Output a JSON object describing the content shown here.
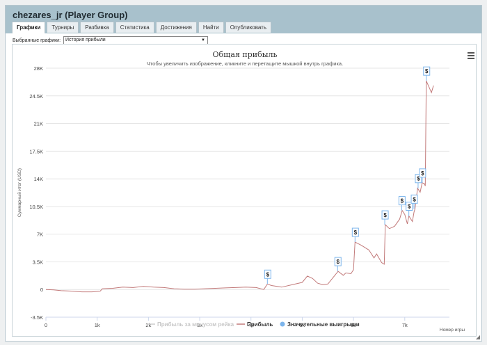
{
  "window": {
    "title": "chezares_jr (Player Group)"
  },
  "tabs": [
    {
      "label": "Графики",
      "active": true
    },
    {
      "label": "Турниры",
      "active": false
    },
    {
      "label": "Разбивка",
      "active": false
    },
    {
      "label": "Статистика",
      "active": false
    },
    {
      "label": "Достижения",
      "active": false
    },
    {
      "label": "Найти",
      "active": false
    },
    {
      "label": "Опубликовать",
      "active": false
    }
  ],
  "selector": {
    "label": "Выбранные графики:",
    "value": "История прибыли"
  },
  "chart_data": {
    "type": "line",
    "title": "Общая прибыль",
    "subtitle": "Чтобы увеличить изображение, кликните и перетащите мышкой внутрь графика.",
    "ylabel": "Суммарный итог (USD)",
    "xlabel": "Номер игры",
    "xlim": [
      0,
      7600
    ],
    "ylim": [
      -3500,
      28000
    ],
    "x_ticks": [
      "0",
      "1k",
      "2k",
      "3k",
      "4k",
      "5k",
      "6k",
      "7k"
    ],
    "y_ticks": [
      "28K",
      "24.5K",
      "21K",
      "17.5K",
      "14K",
      "10.5K",
      "7K",
      "3.5K",
      "0",
      "-3.5K"
    ],
    "legend": [
      {
        "name": "Прибыль за минусом рейка",
        "color": "#cccccc"
      },
      {
        "name": "Прибыль",
        "color": "#c27a7a"
      },
      {
        "name": "Значительные выигрыши",
        "color": "#7cb5ec"
      }
    ],
    "marker_label": "$",
    "series": [
      {
        "name": "Прибыль",
        "color": "#c27a7a",
        "points": [
          [
            0,
            0
          ],
          [
            150,
            -50
          ],
          [
            300,
            -150
          ],
          [
            500,
            -200
          ],
          [
            700,
            -300
          ],
          [
            900,
            -300
          ],
          [
            1060,
            -200
          ],
          [
            1100,
            100
          ],
          [
            1300,
            150
          ],
          [
            1500,
            300
          ],
          [
            1700,
            250
          ],
          [
            1900,
            400
          ],
          [
            2100,
            300
          ],
          [
            2300,
            250
          ],
          [
            2500,
            100
          ],
          [
            2700,
            50
          ],
          [
            2900,
            50
          ],
          [
            3100,
            100
          ],
          [
            3300,
            150
          ],
          [
            3500,
            200
          ],
          [
            3700,
            250
          ],
          [
            3900,
            300
          ],
          [
            4100,
            250
          ],
          [
            4250,
            0
          ],
          [
            4320,
            700
          ],
          [
            4400,
            500
          ],
          [
            4600,
            300
          ],
          [
            4800,
            600
          ],
          [
            5000,
            900
          ],
          [
            5100,
            1700
          ],
          [
            5200,
            1400
          ],
          [
            5300,
            800
          ],
          [
            5400,
            600
          ],
          [
            5500,
            700
          ],
          [
            5600,
            1500
          ],
          [
            5700,
            2300
          ],
          [
            5800,
            1800
          ],
          [
            5850,
            2100
          ],
          [
            5950,
            2000
          ],
          [
            6000,
            2500
          ],
          [
            6030,
            6000
          ],
          [
            6150,
            5600
          ],
          [
            6300,
            5000
          ],
          [
            6400,
            4000
          ],
          [
            6450,
            4500
          ],
          [
            6550,
            3400
          ],
          [
            6600,
            3200
          ],
          [
            6620,
            8200
          ],
          [
            6700,
            7700
          ],
          [
            6800,
            8000
          ],
          [
            6900,
            8900
          ],
          [
            6950,
            10000
          ],
          [
            7000,
            9500
          ],
          [
            7050,
            8300
          ],
          [
            7080,
            9300
          ],
          [
            7150,
            8600
          ],
          [
            7180,
            9800
          ],
          [
            7200,
            10200
          ],
          [
            7250,
            12800
          ],
          [
            7300,
            12300
          ],
          [
            7340,
            13500
          ],
          [
            7380,
            13400
          ],
          [
            7400,
            13100
          ],
          [
            7420,
            26400
          ],
          [
            7480,
            25500
          ],
          [
            7520,
            24900
          ],
          [
            7560,
            25800
          ]
        ]
      }
    ],
    "big_wins": [
      [
        4320,
        700
      ],
      [
        5690,
        2300
      ],
      [
        6030,
        6000
      ],
      [
        6610,
        8200
      ],
      [
        6940,
        10000
      ],
      [
        7080,
        9300
      ],
      [
        7180,
        10200
      ],
      [
        7260,
        12800
      ],
      [
        7340,
        13500
      ],
      [
        7420,
        26400
      ]
    ]
  }
}
